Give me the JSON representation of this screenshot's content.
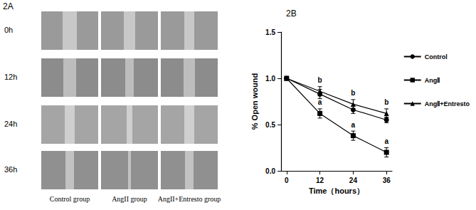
{
  "panel_a": {
    "label": "2A",
    "rows": [
      "0h",
      "12h",
      "24h",
      "36h"
    ],
    "columns": [
      "Control group",
      "AngII group",
      "AngII+Entresto group"
    ]
  },
  "chart_data": {
    "type": "line",
    "title": "2B",
    "xlabel": "Time（hours）",
    "ylabel": "% Open wound",
    "xlim": [
      -2,
      38
    ],
    "xticks": [
      0,
      12,
      24,
      36
    ],
    "ylim": [
      0,
      1.5
    ],
    "yticks": [
      {
        "value": 0,
        "label": "0.0"
      },
      {
        "value": 0.5,
        "label": "0.5"
      },
      {
        "value": 1,
        "label": "1.0"
      },
      {
        "value": 1.5,
        "label": "1.5"
      }
    ],
    "grid": false,
    "legend": "right",
    "x": [
      0,
      12,
      24,
      36
    ],
    "series": [
      {
        "name": "Control",
        "color": "#000000",
        "marker": "circle",
        "values": [
          1,
          0.83,
          0.66,
          0.55
        ],
        "errors": [
          0,
          0.05,
          0.04,
          0.03
        ]
      },
      {
        "name": "AngⅡ",
        "color": "#000000",
        "marker": "square",
        "values": [
          1,
          0.62,
          0.38,
          0.2
        ],
        "errors": [
          0,
          0.05,
          0.05,
          0.05
        ]
      },
      {
        "name": "AngⅡ+Entresto",
        "color": "#000000",
        "marker": "triangle",
        "values": [
          1,
          0.86,
          0.72,
          0.62
        ],
        "errors": [
          0,
          0.05,
          0.05,
          0.05
        ]
      }
    ],
    "annotations": [
      {
        "text": "a",
        "series": "AngⅡ",
        "x": 12
      },
      {
        "text": "a",
        "series": "AngⅡ",
        "x": 24
      },
      {
        "text": "a",
        "series": "AngⅡ",
        "x": 36
      },
      {
        "text": "b",
        "series": "AngⅡ+Entresto",
        "x": 12
      },
      {
        "text": "b",
        "series": "AngⅡ+Entresto",
        "x": 24
      },
      {
        "text": "b",
        "series": "AngⅡ+Entresto",
        "x": 36
      }
    ]
  }
}
